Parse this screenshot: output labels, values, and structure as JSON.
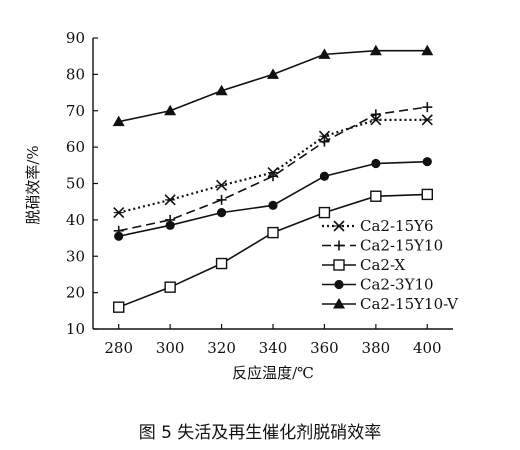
{
  "chart_data": {
    "type": "line",
    "title": "",
    "xlabel": "反应温度/℃",
    "ylabel": "脱硝效率/%",
    "x": [
      280,
      300,
      320,
      340,
      360,
      380,
      400
    ],
    "xlim": [
      270,
      410
    ],
    "ylim": [
      10,
      90
    ],
    "yticks": [
      10,
      20,
      30,
      40,
      50,
      60,
      70,
      80,
      90
    ],
    "grid": false,
    "legend": "bottom-right",
    "series": [
      {
        "name": "Ca2-15Y6",
        "marker": "x",
        "line": "dotted",
        "values": [
          42,
          45.5,
          49.5,
          53,
          63,
          67.5,
          67.5
        ]
      },
      {
        "name": "Ca2-15Y10",
        "marker": "plus",
        "line": "dashed",
        "values": [
          37,
          40,
          45.5,
          52,
          61.5,
          69,
          71
        ]
      },
      {
        "name": "Ca2-X",
        "marker": "square-open",
        "line": "solid",
        "values": [
          16,
          21.5,
          28,
          36.5,
          42,
          46.5,
          47
        ]
      },
      {
        "name": "Ca2-3Y10",
        "marker": "circle-filled",
        "line": "solid",
        "values": [
          35.5,
          38.5,
          42,
          44,
          52,
          55.5,
          56
        ]
      },
      {
        "name": "Ca2-15Y10-V",
        "marker": "triangle-filled",
        "line": "solid",
        "values": [
          67,
          70,
          75.5,
          80,
          85.5,
          86.5,
          86.5
        ]
      }
    ]
  },
  "caption": "图 5  失活及再生催化剂脱硝效率"
}
